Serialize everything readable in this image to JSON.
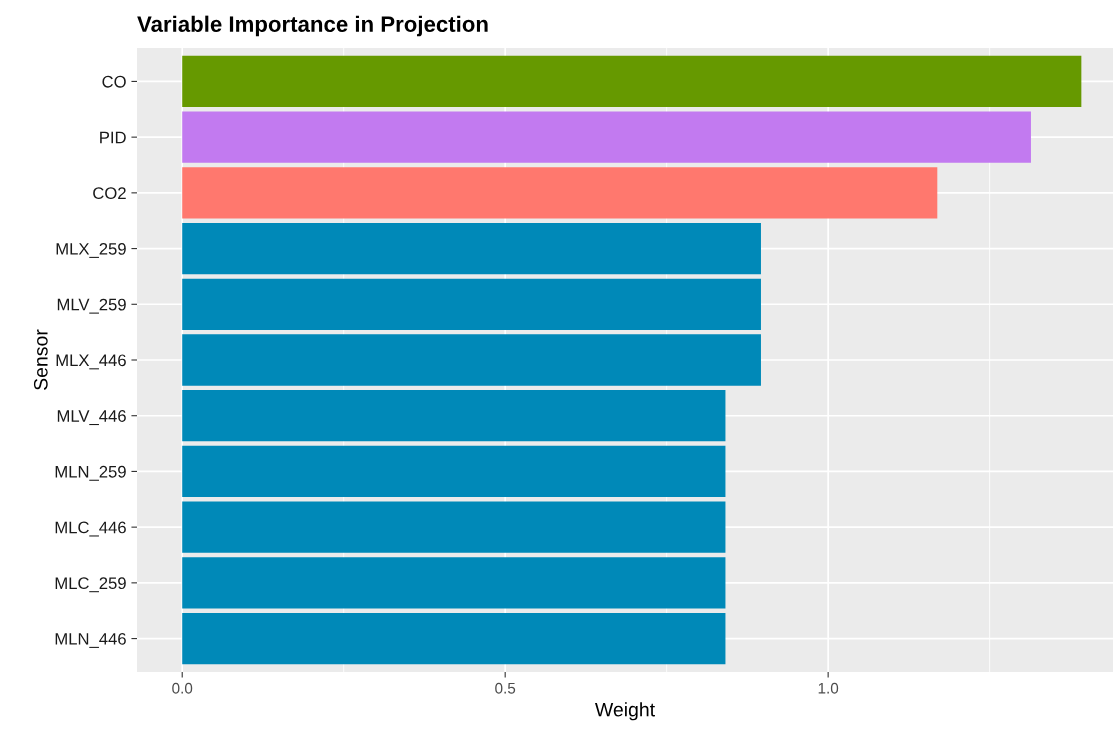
{
  "chart_data": {
    "type": "bar",
    "orientation": "horizontal",
    "title": "Variable Importance in Projection",
    "xlabel": "Weight",
    "ylabel": "Sensor",
    "categories": [
      "CO",
      "PID",
      "CO2",
      "MLX_259",
      "MLV_259",
      "MLX_446",
      "MLV_446",
      "MLN_259",
      "MLC_446",
      "MLC_259",
      "MLN_446"
    ],
    "values": [
      1.392,
      1.314,
      1.169,
      0.896,
      0.896,
      0.896,
      0.841,
      0.841,
      0.841,
      0.841,
      0.841
    ],
    "colors": [
      "#669900",
      "#c27af0",
      "#ff786e",
      "#0089b8",
      "#0089b8",
      "#0089b8",
      "#0089b8",
      "#0089b8",
      "#0089b8",
      "#0089b8",
      "#0089b8"
    ],
    "xlim": [
      -0.07,
      1.441
    ],
    "xticks": [
      {
        "value": 0,
        "label": "0.0"
      },
      {
        "value": 0.5,
        "label": "0.5"
      },
      {
        "value": 1,
        "label": "1.0"
      }
    ],
    "grid": true,
    "legend": false
  }
}
